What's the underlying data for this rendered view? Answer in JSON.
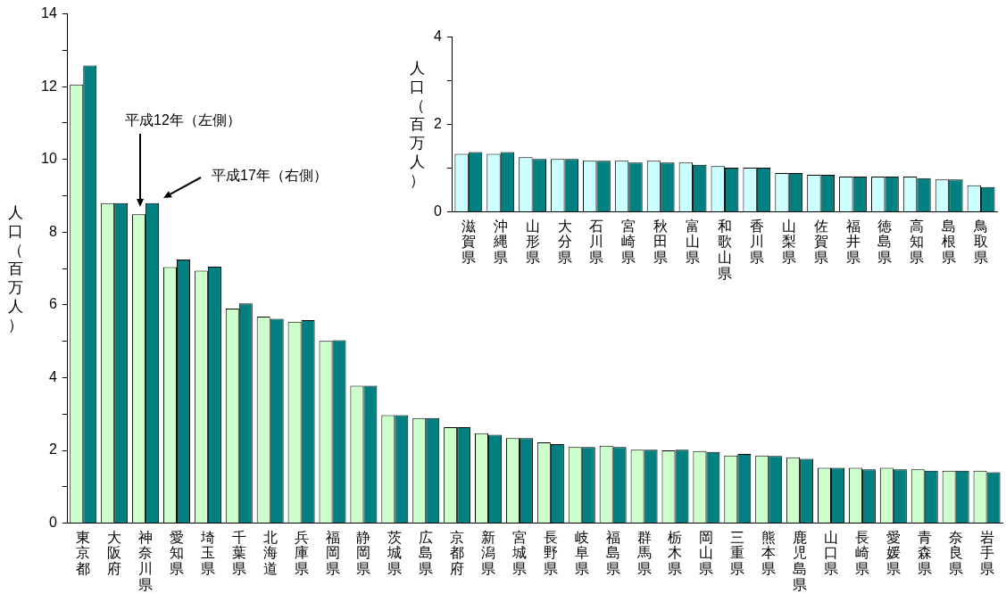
{
  "chart_data": [
    {
      "type": "bar",
      "ylabel": "人口（百万人）",
      "categories": [
        "東京都",
        "大阪府",
        "神奈川県",
        "愛知県",
        "埼玉県",
        "千葉県",
        "北海道",
        "兵庫県",
        "福岡県",
        "静岡県",
        "茨城県",
        "広島県",
        "京都府",
        "新潟県",
        "宮城県",
        "長野県",
        "岐阜県",
        "福島県",
        "群馬県",
        "栃木県",
        "岡山県",
        "三重県",
        "熊本県",
        "鹿児島県",
        "山口県",
        "長崎県",
        "愛媛県",
        "青森県",
        "奈良県",
        "岩手県"
      ],
      "series": [
        {
          "color": "#ccffcc",
          "values": [
            12.06,
            8.8,
            8.49,
            7.04,
            6.94,
            5.9,
            5.68,
            5.54,
            5.01,
            3.78,
            2.97,
            2.89,
            2.64,
            2.47,
            2.34,
            2.22,
            2.09,
            2.13,
            2.02,
            2.0,
            1.98,
            1.86,
            1.86,
            1.81,
            1.52,
            1.52,
            1.52,
            1.48,
            1.44,
            1.44
          ]
        },
        {
          "color": "#008080",
          "values": [
            12.58,
            8.8,
            8.8,
            7.25,
            7.05,
            6.04,
            5.62,
            5.58,
            5.03,
            3.78,
            2.97,
            2.89,
            2.64,
            2.43,
            2.34,
            2.17,
            2.09,
            2.09,
            2.02,
            2.02,
            1.96,
            1.9,
            1.85,
            1.77,
            1.52,
            1.48,
            1.48,
            1.44,
            1.44,
            1.4
          ]
        }
      ],
      "ylim": [
        0,
        14
      ],
      "yticks": [
        0,
        {
          "value": 1,
          "label": null
        },
        2,
        {
          "value": 3,
          "label": null
        },
        4,
        {
          "value": 5,
          "label": null
        },
        6,
        {
          "value": 7,
          "label": null
        },
        8,
        {
          "value": 9,
          "label": null
        },
        10,
        {
          "value": 11,
          "label": null
        },
        12,
        {
          "value": 13,
          "label": null
        },
        14
      ],
      "grid": false,
      "legend": false,
      "annotations": [
        "平成12年（左側）",
        "平成17年（右側）"
      ]
    },
    {
      "type": "bar",
      "ylabel": "人口（百万人）",
      "categories": [
        "滋賀県",
        "沖縄県",
        "山形県",
        "大分県",
        "石川県",
        "宮崎県",
        "秋田県",
        "富山県",
        "和歌山県",
        "香川県",
        "山梨県",
        "佐賀県",
        "福井県",
        "徳島県",
        "高知県",
        "島根県",
        "鳥取県"
      ],
      "series": [
        {
          "color": "#ccffff",
          "values": [
            1.33,
            1.33,
            1.25,
            1.21,
            1.17,
            1.17,
            1.17,
            1.13,
            1.05,
            1.01,
            0.89,
            0.85,
            0.81,
            0.81,
            0.81,
            0.74,
            0.61
          ]
        },
        {
          "color": "#008080",
          "values": [
            1.37,
            1.37,
            1.21,
            1.21,
            1.17,
            1.13,
            1.13,
            1.08,
            1.01,
            1.01,
            0.89,
            0.85,
            0.81,
            0.81,
            0.77,
            0.74,
            0.57
          ]
        }
      ],
      "ylim": [
        0,
        4
      ],
      "yticks": [
        0,
        {
          "value": 1,
          "label": null
        },
        2,
        {
          "value": 3,
          "label": null
        },
        4
      ],
      "grid": false,
      "legend": false
    }
  ]
}
